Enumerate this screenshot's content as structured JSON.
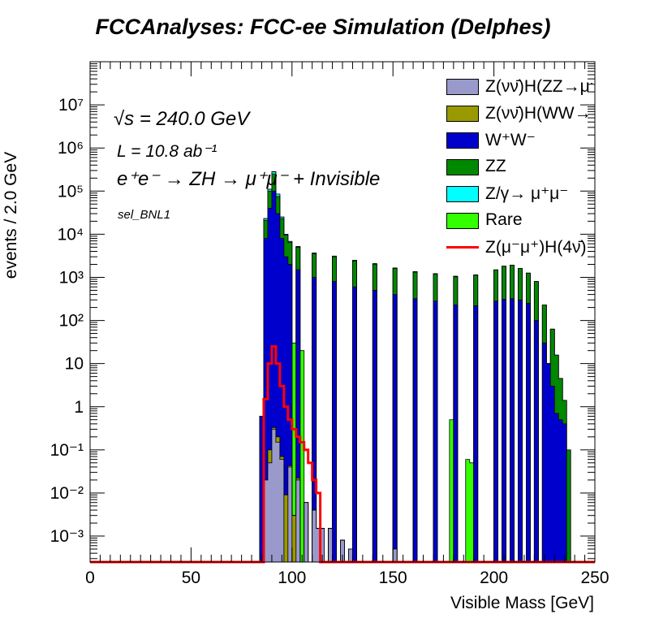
{
  "title": "FCCAnalyses: FCC-ee Simulation (Delphes)",
  "annotations": {
    "sqrt_s": "√s = 240.0 GeV",
    "lumi": "L = 10.8 ab⁻¹",
    "process": "e⁺e⁻ → ZH → μ⁺μ⁻ + Invisible",
    "selection": "sel_BNL1"
  },
  "chart_data": {
    "type": "histogram",
    "stacked": true,
    "xlabel": "Visible Mass [GeV]",
    "ylabel": "events / 2.0 GeV",
    "xlim": [
      0,
      250
    ],
    "ylim": [
      0.00025,
      100000000.0
    ],
    "ylog": true,
    "bin_width": 2.0,
    "x_ticks": [
      0,
      50,
      100,
      150,
      200,
      250
    ],
    "y_ticks": [
      "10⁻³",
      "10⁻²",
      "10⁻¹",
      "1",
      "10",
      "10²",
      "10³",
      "10⁴",
      "10⁵",
      "10⁶",
      "10⁷"
    ],
    "grid": false,
    "legend_position": "top-right",
    "series": [
      {
        "name": "Z(νν̄)H(ZZ→μ⁺μ⁻ν⁺ν⁻)",
        "color": "#9999cc",
        "points": [
          [
            87,
            0.02
          ],
          [
            89,
            0.05
          ],
          [
            91,
            0.3
          ],
          [
            93,
            0.15
          ],
          [
            95,
            0.06
          ],
          [
            99,
            0.04
          ],
          [
            103,
            0.02
          ],
          [
            107,
            0.006
          ],
          [
            111,
            0.004
          ],
          [
            113,
            0.0015
          ],
          [
            115,
            0.0015
          ],
          [
            119,
            0.0015
          ],
          [
            125,
            0.0008
          ],
          [
            129,
            0.0005
          ],
          [
            151,
            0.0005
          ]
        ]
      },
      {
        "name": "Z(νν̄)H(WW→μ⁺νμ⁻ν)",
        "color": "#999900",
        "points": [
          [
            89,
            0.05
          ],
          [
            91,
            0.03
          ],
          [
            93,
            0.05
          ],
          [
            95,
            0.01
          ],
          [
            97,
            0.009
          ],
          [
            99,
            0.003
          ],
          [
            101,
            0.003
          ],
          [
            103,
            0.002
          ]
        ]
      },
      {
        "name": "W⁺W⁻",
        "color": "#0000cc",
        "points": [
          [
            85,
            0.6
          ],
          [
            87,
            8000
          ],
          [
            89,
            40000
          ],
          [
            91,
            100000
          ],
          [
            93,
            30000
          ],
          [
            95,
            8000
          ],
          [
            97,
            3000
          ],
          [
            99,
            2000
          ],
          [
            103,
            1500
          ],
          [
            111,
            1000
          ],
          [
            121,
            800
          ],
          [
            131,
            600
          ],
          [
            141,
            500
          ],
          [
            151,
            400
          ],
          [
            161,
            320
          ],
          [
            171,
            280
          ],
          [
            181,
            230
          ],
          [
            191,
            220
          ],
          [
            201,
            280
          ],
          [
            205,
            310
          ],
          [
            209,
            320
          ],
          [
            213,
            300
          ],
          [
            217,
            250
          ],
          [
            221,
            100
          ],
          [
            225,
            30
          ],
          [
            227,
            10
          ],
          [
            229,
            3
          ],
          [
            231,
            0.7
          ],
          [
            233,
            0.5
          ],
          [
            235,
            0.4
          ]
        ]
      },
      {
        "name": "ZZ",
        "color": "#008800",
        "points": [
          [
            87,
            13000
          ],
          [
            89,
            60000
          ],
          [
            91,
            150000
          ],
          [
            93,
            45000
          ],
          [
            95,
            15000
          ],
          [
            97,
            6500
          ],
          [
            99,
            4500
          ],
          [
            103,
            3500
          ],
          [
            111,
            2500
          ],
          [
            121,
            2200
          ],
          [
            131,
            1800
          ],
          [
            141,
            1500
          ],
          [
            151,
            1200
          ],
          [
            161,
            1000
          ],
          [
            171,
            900
          ],
          [
            181,
            800
          ],
          [
            191,
            900
          ],
          [
            201,
            1200
          ],
          [
            205,
            1500
          ],
          [
            209,
            1600
          ],
          [
            213,
            1300
          ],
          [
            217,
            1000
          ],
          [
            221,
            700
          ],
          [
            225,
            200
          ],
          [
            229,
            60
          ],
          [
            231,
            15
          ],
          [
            233,
            4
          ],
          [
            235,
            1
          ],
          [
            237,
            0.1
          ]
        ]
      },
      {
        "name": "Z/γ→ μ⁺μ⁻",
        "color": "#00ffff",
        "points": [
          [
            87,
            2000
          ],
          [
            89,
            10000
          ],
          [
            91,
            30000
          ],
          [
            93,
            10000
          ],
          [
            95,
            2000
          ],
          [
            97,
            400
          ],
          [
            99,
            300
          ],
          [
            103,
            200
          ],
          [
            111,
            150
          ],
          [
            121,
            100
          ],
          [
            131,
            80
          ],
          [
            141,
            70
          ],
          [
            151,
            50
          ],
          [
            161,
            40
          ],
          [
            171,
            35
          ],
          [
            181,
            30
          ],
          [
            191,
            20
          ],
          [
            201,
            10
          ],
          [
            205,
            5
          ],
          [
            209,
            1
          ],
          [
            213,
            0.2
          ],
          [
            217,
            0.05
          ],
          [
            221,
            0.01
          ]
        ]
      },
      {
        "name": "Rare",
        "color": "#33ff00",
        "points": [
          [
            87,
            30
          ],
          [
            89,
            30
          ],
          [
            91,
            3000
          ],
          [
            93,
            500
          ],
          [
            95,
            100
          ],
          [
            97,
            50
          ],
          [
            101,
            30
          ],
          [
            105,
            20
          ],
          [
            111,
            15
          ],
          [
            121,
            10
          ],
          [
            131,
            7
          ],
          [
            141,
            5
          ],
          [
            151,
            3
          ],
          [
            161,
            2
          ],
          [
            171,
            1
          ],
          [
            179,
            0.5
          ],
          [
            181,
            0.08
          ],
          [
            187,
            0.06
          ],
          [
            189,
            0.05
          ]
        ]
      },
      {
        "name": "Z(μ⁻μ⁺)H(4ν̄)",
        "color": "#ff0000",
        "points": [
          [
            85,
            0.0
          ],
          [
            87,
            1.5
          ],
          [
            89,
            10
          ],
          [
            91,
            25
          ],
          [
            93,
            10
          ],
          [
            95,
            3
          ],
          [
            97,
            1
          ],
          [
            99,
            0.5
          ],
          [
            101,
            0.3
          ],
          [
            103,
            0.2
          ],
          [
            105,
            0.15
          ],
          [
            107,
            0.1
          ],
          [
            109,
            0.05
          ],
          [
            111,
            0.02
          ],
          [
            113,
            0.01
          ],
          [
            115,
            0.0
          ]
        ]
      }
    ]
  }
}
